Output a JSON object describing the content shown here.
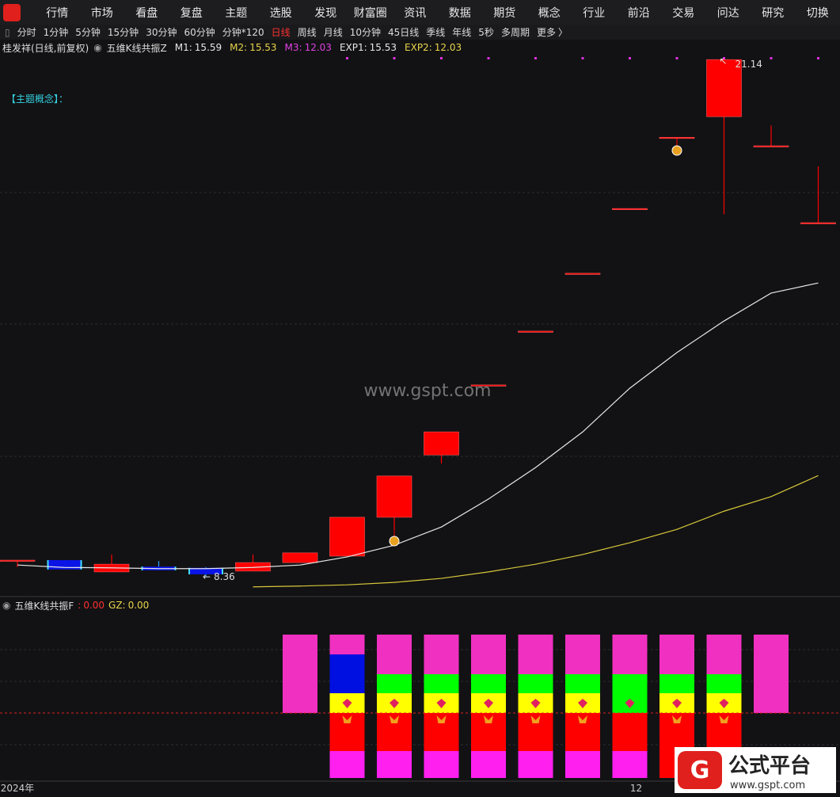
{
  "menu": [
    "行情",
    "市场",
    "看盘",
    "复盘",
    "主题",
    "选股",
    "发现",
    "财富圈",
    "资讯",
    "数据",
    "期货",
    "概念",
    "行业",
    "前沿",
    "交易",
    "问达",
    "研究",
    "切换"
  ],
  "periods": [
    "分时",
    "1分钟",
    "5分钟",
    "15分钟",
    "30分钟",
    "60分钟",
    "分钟*120",
    "日线",
    "周线",
    "月线",
    "10分钟",
    "45日线",
    "季线",
    "年线",
    "5秒",
    "多周期",
    "更多"
  ],
  "active_period_index": 7,
  "active_color": "#ff3030",
  "stock": "桂发祥(日线,前复权)",
  "indicator_z": {
    "name": "五维K线共振Z",
    "items": [
      {
        "label": "M1:",
        "value": 15.59,
        "color": "#e6e6e6"
      },
      {
        "label": "M2:",
        "value": 15.53,
        "color": "#e8d44a"
      },
      {
        "label": "M3:",
        "value": 12.03,
        "color": "#e040e0"
      },
      {
        "label": "EXP1:",
        "value": 15.53,
        "color": "#e6e6e6"
      },
      {
        "label": "EXP2:",
        "value": 12.03,
        "color": "#e8d44a"
      }
    ]
  },
  "theme_label": "【主题概念】：",
  "chart_data": {
    "type": "candlestick",
    "categories": [
      "2024年",
      null,
      null,
      null,
      null,
      null,
      null,
      null,
      null,
      null,
      null,
      null,
      null,
      "12",
      null,
      null,
      null,
      null
    ],
    "open": [
      8.77,
      8.77,
      8.48,
      8.61,
      8.58,
      8.5,
      8.71,
      8.87,
      9.83,
      11.37,
      13.1,
      14.43,
      15.86,
      17.46,
      19.22,
      19.73,
      19.01,
      17.11
    ],
    "close": [
      8.77,
      8.54,
      8.67,
      8.52,
      8.42,
      8.71,
      8.95,
      9.83,
      10.85,
      11.94,
      13.1,
      14.43,
      15.86,
      17.46,
      19.22,
      21.14,
      19.01,
      17.11
    ],
    "high": [
      8.77,
      8.77,
      8.91,
      8.75,
      8.6,
      8.91,
      8.95,
      9.83,
      10.85,
      11.94,
      13.1,
      14.43,
      15.86,
      17.46,
      19.22,
      21.14,
      19.51,
      18.5
    ],
    "low": [
      8.6,
      8.54,
      8.48,
      8.52,
      8.36,
      8.5,
      8.71,
      8.87,
      9.3,
      11.16,
      13.1,
      14.43,
      15.86,
      17.46,
      18.99,
      17.32,
      19.01,
      17.11
    ],
    "up_color": "#ff0000",
    "down_color": "#0a14e6",
    "lines": [
      {
        "color": "#e6e6e6",
        "values": [
          8.65,
          8.59,
          8.58,
          8.56,
          8.56,
          8.59,
          8.65,
          8.85,
          9.14,
          9.59,
          10.28,
          11.06,
          11.94,
          13.02,
          13.9,
          14.68,
          15.37,
          15.62
        ]
      },
      {
        "color": "#d8c83a",
        "values": [
          null,
          null,
          null,
          null,
          null,
          8.11,
          8.13,
          8.16,
          8.22,
          8.32,
          8.48,
          8.67,
          8.91,
          9.2,
          9.53,
          9.98,
          10.34,
          10.86
        ]
      }
    ],
    "ylim": [
      7.89,
      21.34
    ],
    "max_label": 21.14,
    "min_label": 8.36
  },
  "indicator_f": {
    "name": "五维K线共振F",
    "items": [
      {
        "label": ":",
        "value": 0,
        "value_label": "0.00",
        "color": "#ff3030"
      },
      {
        "label": "GZ:",
        "value": 0,
        "value_label": "0.00",
        "color": "#e8d44a"
      }
    ]
  },
  "watermark": "www.gspt.com",
  "logo": {
    "title": "公式平台",
    "url": "www.gspt.com"
  }
}
